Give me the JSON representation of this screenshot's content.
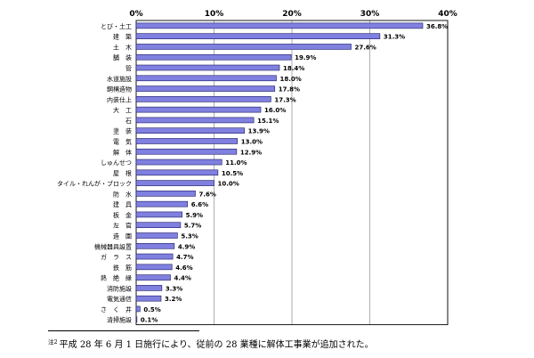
{
  "chart_data": {
    "type": "bar",
    "orientation": "horizontal",
    "title": "",
    "xlabel": "",
    "ylabel": "",
    "xlim": [
      0,
      40
    ],
    "ticks": [
      "0%",
      "10%",
      "20%",
      "30%",
      "40%"
    ],
    "grid": true,
    "legend": "none",
    "bar_color": "#8080e0",
    "categories": [
      "とび・土工",
      "建　築",
      "土　木",
      "舗　装",
      "管",
      "水道施設",
      "鋼構造物",
      "内装仕上",
      "大　工",
      "石",
      "塗　装",
      "電　気",
      "解　体",
      "しゅんせつ",
      "屋　根",
      "タイル・れんが・ブロック",
      "防　水",
      "建　具",
      "板　金",
      "左　官",
      "造　園",
      "機械器具設置",
      "ガ　ラ　ス",
      "鉄　筋",
      "熱　絶　縁",
      "消防施設",
      "電気通信",
      "さ　く　井",
      "清掃施設"
    ],
    "values": [
      36.8,
      31.3,
      27.6,
      19.9,
      18.4,
      18.0,
      17.8,
      17.3,
      16.0,
      15.1,
      13.9,
      13.0,
      12.9,
      11.0,
      10.5,
      10.0,
      7.6,
      6.6,
      5.9,
      5.7,
      5.3,
      4.9,
      4.7,
      4.6,
      4.4,
      3.3,
      3.2,
      0.5,
      0.1
    ],
    "value_labels": [
      "36.8%",
      "31.3%",
      "27.6%",
      "19.9%",
      "18.4%",
      "18.0%",
      "17.8%",
      "17.3%",
      "16.0%",
      "15.1%",
      "13.9%",
      "13.0%",
      "12.9%",
      "11.0%",
      "10.5%",
      "10.0%",
      "7.6%",
      "6.6%",
      "5.9%",
      "5.7%",
      "5.3%",
      "4.9%",
      "4.7%",
      "4.6%",
      "4.4%",
      "3.3%",
      "3.2%",
      "0.5%",
      "0.1%"
    ]
  },
  "footnote": {
    "marker": "注2",
    "text": "平成 28 年 6 月 1 日施行により、従前の 28 業種に解体工事業が追加された。"
  }
}
